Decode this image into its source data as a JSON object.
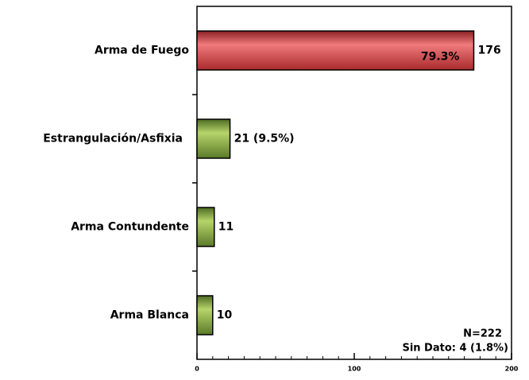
{
  "chart_data": {
    "type": "barh",
    "categories": [
      "Arma de Fuego",
      "Estrangulación/Asfixia",
      "Arma Contundente",
      "Arma Blanca"
    ],
    "values": [
      176,
      21,
      11,
      10
    ],
    "value_labels": [
      "176",
      "21 (9.5%)",
      "11",
      "10"
    ],
    "colors": [
      "#c8383a",
      "#7a9c3c",
      "#7a9c3c",
      "#7a9c3c"
    ],
    "xlim": [
      0,
      200
    ],
    "xticks": [
      0,
      100,
      200
    ],
    "xminor": [
      10,
      20,
      30,
      40,
      50,
      60,
      70,
      80,
      90,
      110,
      120,
      130,
      140,
      150,
      160,
      170,
      180,
      190
    ],
    "annotations": [
      "79.3%",
      "N=222",
      "Sin Dato: 4 (1.8%)"
    ]
  }
}
